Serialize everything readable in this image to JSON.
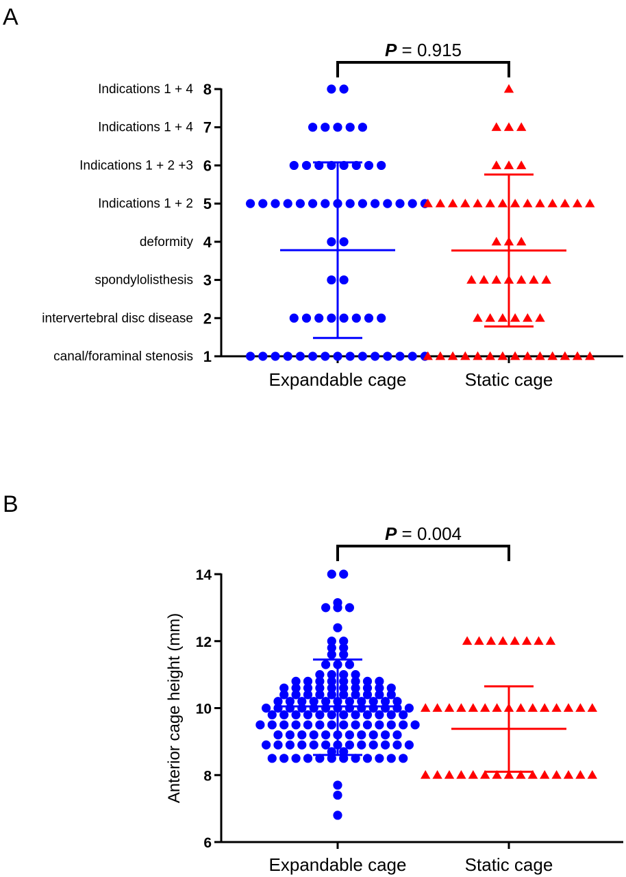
{
  "chart_data": [
    {
      "panel_label": "A",
      "type": "scatter",
      "categories": [
        "Expandable cage",
        "Static cage"
      ],
      "yticks": [
        "1",
        "2",
        "3",
        "4",
        "5",
        "6",
        "7",
        "8"
      ],
      "ylim": [
        1,
        8
      ],
      "category_labels": [
        "canal/foraminal stenosis",
        "intervertebral disc disease",
        "spondylolisthesis",
        "deformity",
        "Indications 1 + 2",
        "Indications 1 + 2 +3",
        "Indications 1 + 4",
        "Indications 1 + 4"
      ],
      "pvalue": {
        "label": "P",
        "text": " = 0.915"
      },
      "series": [
        {
          "group": "Expandable cage",
          "color": "#0000ff",
          "marker": "circle",
          "counts": [
            {
              "y": 1,
              "n": 15
            },
            {
              "y": 2,
              "n": 8
            },
            {
              "y": 3,
              "n": 2
            },
            {
              "y": 4,
              "n": 2
            },
            {
              "y": 5,
              "n": 15
            },
            {
              "y": 6,
              "n": 8
            },
            {
              "y": 7,
              "n": 5
            },
            {
              "y": 8,
              "n": 2
            }
          ],
          "mean": 3.78,
          "sd_low": 1.48,
          "sd_high": 6.08
        },
        {
          "group": "Static cage",
          "color": "#ff0000",
          "marker": "triangle",
          "counts": [
            {
              "y": 1,
              "n": 14
            },
            {
              "y": 2,
              "n": 6
            },
            {
              "y": 3,
              "n": 7
            },
            {
              "y": 4,
              "n": 3
            },
            {
              "y": 5,
              "n": 14
            },
            {
              "y": 6,
              "n": 3
            },
            {
              "y": 7,
              "n": 3
            },
            {
              "y": 8,
              "n": 1
            }
          ],
          "mean": 3.77,
          "sd_low": 1.78,
          "sd_high": 5.76
        }
      ]
    },
    {
      "panel_label": "B",
      "type": "scatter",
      "categories": [
        "Expandable cage",
        "Static cage"
      ],
      "ylabel": "Anterior cage height (mm)",
      "yticks": [
        "6",
        "8",
        "10",
        "12",
        "14"
      ],
      "ylim": [
        6,
        14
      ],
      "pvalue": {
        "label": "P",
        "text": " = 0.004"
      },
      "series": [
        {
          "group": "Expandable cage",
          "color": "#0000ff",
          "marker": "circle",
          "counts": [
            {
              "y": 6.8,
              "n": 1
            },
            {
              "y": 7.4,
              "n": 1
            },
            {
              "y": 7.7,
              "n": 1
            },
            {
              "y": 8.5,
              "n": 12
            },
            {
              "y": 8.7,
              "n": 2
            },
            {
              "y": 8.9,
              "n": 13
            },
            {
              "y": 9.2,
              "n": 11
            },
            {
              "y": 9.5,
              "n": 14
            },
            {
              "y": 9.8,
              "n": 12
            },
            {
              "y": 10.0,
              "n": 13
            },
            {
              "y": 10.2,
              "n": 11
            },
            {
              "y": 10.4,
              "n": 10
            },
            {
              "y": 10.6,
              "n": 10
            },
            {
              "y": 10.8,
              "n": 8
            },
            {
              "y": 11.0,
              "n": 4
            },
            {
              "y": 11.3,
              "n": 3
            },
            {
              "y": 11.6,
              "n": 2
            },
            {
              "y": 11.8,
              "n": 2
            },
            {
              "y": 12.0,
              "n": 2
            },
            {
              "y": 12.4,
              "n": 1
            },
            {
              "y": 13.0,
              "n": 3
            },
            {
              "y": 13.15,
              "n": 1
            },
            {
              "y": 14.0,
              "n": 2
            }
          ],
          "mean": 10.05,
          "sd_low": 8.6,
          "sd_high": 11.45
        },
        {
          "group": "Static cage",
          "color": "#ff0000",
          "marker": "triangle",
          "counts": [
            {
              "y": 8,
              "n": 15
            },
            {
              "y": 10,
              "n": 15
            },
            {
              "y": 12,
              "n": 8
            }
          ],
          "mean": 9.38,
          "sd_low": 8.1,
          "sd_high": 10.65
        }
      ]
    }
  ]
}
